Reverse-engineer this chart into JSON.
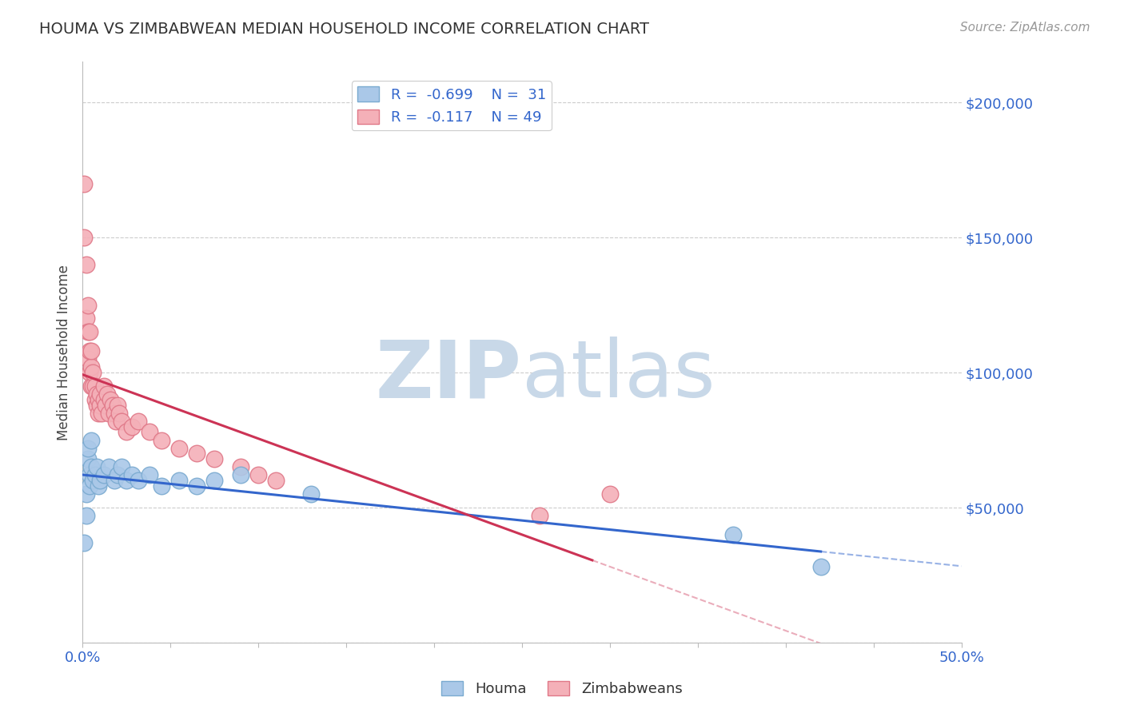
{
  "title": "HOUMA VS ZIMBABWEAN MEDIAN HOUSEHOLD INCOME CORRELATION CHART",
  "source_text": "Source: ZipAtlas.com",
  "ylabel": "Median Household Income",
  "xlim": [
    0.0,
    0.5
  ],
  "ylim": [
    0,
    215000
  ],
  "xticks": [
    0.0,
    0.05,
    0.1,
    0.15,
    0.2,
    0.25,
    0.3,
    0.35,
    0.4,
    0.45,
    0.5
  ],
  "xticklabels_show": [
    "0.0%",
    "50.0%"
  ],
  "xticklabels_pos": [
    0.0,
    0.5
  ],
  "yticks_right": [
    0,
    50000,
    100000,
    150000,
    200000
  ],
  "ytick_labels_right": [
    "",
    "$50,000",
    "$100,000",
    "$150,000",
    "$200,000"
  ],
  "grid_color": "#cccccc",
  "background_color": "#ffffff",
  "houma_color": "#aac8e8",
  "houma_edge_color": "#7aaad0",
  "zimbabwe_color": "#f4b0b8",
  "zimbabwe_edge_color": "#e07888",
  "houma_R": -0.699,
  "houma_N": 31,
  "zimbabwe_R": -0.117,
  "zimbabwe_N": 49,
  "houma_line_color": "#3366cc",
  "zimbabwe_line_color": "#cc3355",
  "houma_x": [
    0.001,
    0.002,
    0.002,
    0.003,
    0.003,
    0.004,
    0.004,
    0.005,
    0.005,
    0.006,
    0.007,
    0.008,
    0.009,
    0.01,
    0.012,
    0.015,
    0.018,
    0.02,
    0.022,
    0.025,
    0.028,
    0.032,
    0.038,
    0.045,
    0.055,
    0.065,
    0.075,
    0.09,
    0.13,
    0.37,
    0.42
  ],
  "houma_y": [
    37000,
    47000,
    55000,
    68000,
    72000,
    62000,
    58000,
    65000,
    75000,
    60000,
    62000,
    65000,
    58000,
    60000,
    62000,
    65000,
    60000,
    62000,
    65000,
    60000,
    62000,
    60000,
    62000,
    58000,
    60000,
    58000,
    60000,
    62000,
    55000,
    40000,
    28000
  ],
  "zimbabwe_x": [
    0.001,
    0.001,
    0.002,
    0.002,
    0.003,
    0.003,
    0.003,
    0.004,
    0.004,
    0.004,
    0.005,
    0.005,
    0.005,
    0.006,
    0.006,
    0.007,
    0.007,
    0.008,
    0.008,
    0.009,
    0.009,
    0.01,
    0.01,
    0.011,
    0.012,
    0.012,
    0.013,
    0.014,
    0.015,
    0.016,
    0.017,
    0.018,
    0.019,
    0.02,
    0.021,
    0.022,
    0.025,
    0.028,
    0.032,
    0.038,
    0.045,
    0.055,
    0.065,
    0.075,
    0.09,
    0.1,
    0.11,
    0.26,
    0.3
  ],
  "zimbabwe_y": [
    150000,
    170000,
    140000,
    120000,
    105000,
    115000,
    125000,
    100000,
    108000,
    115000,
    95000,
    102000,
    108000,
    95000,
    100000,
    90000,
    95000,
    88000,
    92000,
    85000,
    90000,
    88000,
    92000,
    85000,
    90000,
    95000,
    88000,
    92000,
    85000,
    90000,
    88000,
    85000,
    82000,
    88000,
    85000,
    82000,
    78000,
    80000,
    82000,
    78000,
    75000,
    72000,
    70000,
    68000,
    65000,
    62000,
    60000,
    47000,
    55000
  ],
  "watermark_zip": "ZIP",
  "watermark_atlas": "atlas",
  "watermark_color": "#c8d8e8",
  "legend_color": "#3366cc"
}
